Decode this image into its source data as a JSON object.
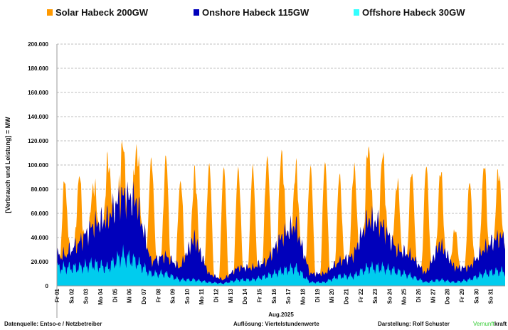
{
  "chart_data": {
    "type": "area",
    "stacked": true,
    "title": "",
    "xlabel": "Aug.2025",
    "ylabel": "[Verbrauch und Leistung] =  MW",
    "ylim": [
      0,
      200000
    ],
    "yticks": [
      "0",
      "20.000",
      "40.000",
      "60.000",
      "80.000",
      "100.000",
      "120.000",
      "140.000",
      "160.000",
      "180.000",
      "200.000"
    ],
    "grid": true,
    "legend_position": "top",
    "categories": [
      "Fr 01",
      "Sa 02",
      "So 03",
      "Mo 04",
      "Di 05",
      "Mi 06",
      "Do 07",
      "Fr 08",
      "Sa 09",
      "So 10",
      "Mo 11",
      "Di 12",
      "Mi 13",
      "Do 14",
      "Fr 15",
      "Sa 16",
      "So 17",
      "Mo 18",
      "Di 19",
      "Mi 20",
      "Do 21",
      "Fr 22",
      "Sa 23",
      "So 24",
      "Mo 25",
      "Di 26",
      "Mi 27",
      "Do 28",
      "Fr 29",
      "Sa 30",
      "So 31"
    ],
    "series": [
      {
        "name": "Offshore Habeck 30GW",
        "color": "#00CCEE",
        "values": [
          15000,
          15000,
          18000,
          15000,
          25000,
          20000,
          10000,
          10000,
          5000,
          5000,
          3000,
          2000,
          5000,
          5000,
          8000,
          12000,
          15000,
          3000,
          3000,
          8000,
          8000,
          15000,
          15000,
          12000,
          8000,
          3000,
          5000,
          3000,
          5000,
          10000,
          12000
        ]
      },
      {
        "name": "Onshore Habeck 115GW",
        "color": "#0000BB",
        "values": [
          10000,
          20000,
          32000,
          40000,
          50000,
          50000,
          10000,
          15000,
          10000,
          35000,
          7000,
          3000,
          10000,
          10000,
          12000,
          28000,
          35000,
          7000,
          7000,
          12000,
          17000,
          40000,
          35000,
          18000,
          17000,
          7000,
          30000,
          12000,
          10000,
          20000,
          28000
        ]
      },
      {
        "name": "Solar Habeck 200GW",
        "color": "#FF9900",
        "values": [
          61000,
          54000,
          35000,
          48000,
          40000,
          46000,
          84000,
          81000,
          71000,
          55000,
          90000,
          93000,
          82000,
          82000,
          86000,
          70000,
          48000,
          89000,
          92000,
          70000,
          72000,
          61000,
          58000,
          57000,
          71000,
          88000,
          62000,
          32000,
          70000,
          70000,
          56000
        ]
      }
    ]
  },
  "footer": {
    "source": "Datenquelle: Entso-e  / Netzbetreiber",
    "resolution": "Auflösung: Viertelstundenwerte",
    "author": "Darstellung:  Rolf Schuster",
    "brand_green": "Vernunft",
    "brand_black": "kraft"
  }
}
